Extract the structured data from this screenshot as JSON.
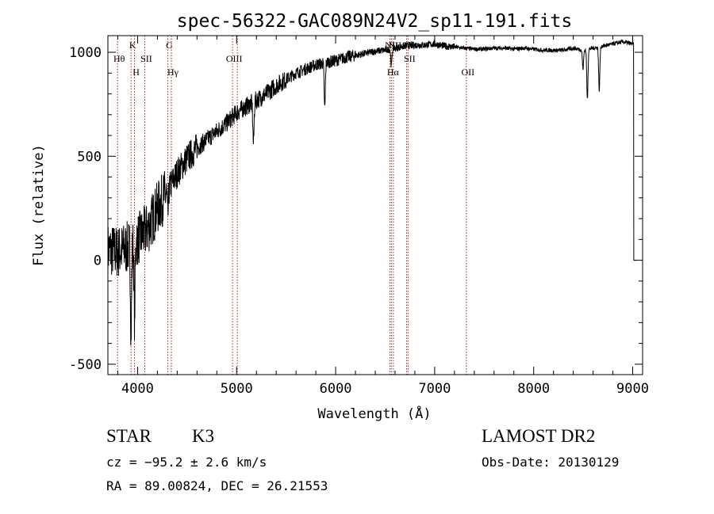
{
  "chart_data": {
    "type": "line",
    "title": "spec-56322-GAC089N24V2_sp11-191.fits",
    "xlabel": "Wavelength (Å)",
    "ylabel": "Flux (relative)",
    "xlim": [
      3700,
      9100
    ],
    "ylim": [
      -550,
      1080
    ],
    "xticks": [
      4000,
      5000,
      6000,
      7000,
      8000,
      9000
    ],
    "yticks": [
      -500,
      0,
      500,
      1000
    ],
    "grid": false,
    "line_color": "#000000",
    "marker_color": "#b22222",
    "spectral_lines": [
      {
        "label": "Hθ",
        "wavelength": 3798,
        "tier": "top"
      },
      {
        "label": "K",
        "wavelength": 3934,
        "tier": "upper"
      },
      {
        "label": "H",
        "wavelength": 3969,
        "tier": "lower"
      },
      {
        "label": "SII",
        "wavelength": 4072,
        "tier": "top"
      },
      {
        "label": "G",
        "wavelength": 4305,
        "tier": "upper"
      },
      {
        "label": "Hγ",
        "wavelength": 4341,
        "tier": "lower"
      },
      {
        "label": "OIII",
        "wavelength": 4959,
        "tier": "top"
      },
      {
        "label": "OIII",
        "wavelength": 5007,
        "tier": "none"
      },
      {
        "label": "NII",
        "wavelength": 6548,
        "tier": "upper"
      },
      {
        "label": "Hα",
        "wavelength": 6563,
        "tier": "lower"
      },
      {
        "label": "NII",
        "wavelength": 6583,
        "tier": "upper"
      },
      {
        "label": "SII",
        "wavelength": 6716,
        "tier": "upper"
      },
      {
        "label": "SII",
        "wavelength": 6731,
        "tier": "top"
      },
      {
        "label": "OII",
        "wavelength": 7320,
        "tier": "lower"
      }
    ],
    "spectrum_anchors": [
      [
        3700,
        50
      ],
      [
        3800,
        40
      ],
      [
        3900,
        60
      ],
      [
        4000,
        100
      ],
      [
        4100,
        150
      ],
      [
        4200,
        250
      ],
      [
        4300,
        330
      ],
      [
        4400,
        420
      ],
      [
        4500,
        490
      ],
      [
        4600,
        540
      ],
      [
        4700,
        580
      ],
      [
        4800,
        620
      ],
      [
        4900,
        660
      ],
      [
        5000,
        710
      ],
      [
        5100,
        740
      ],
      [
        5200,
        770
      ],
      [
        5300,
        800
      ],
      [
        5400,
        840
      ],
      [
        5500,
        870
      ],
      [
        5600,
        900
      ],
      [
        5700,
        920
      ],
      [
        5800,
        940
      ],
      [
        5900,
        950
      ],
      [
        6000,
        960
      ],
      [
        6100,
        975
      ],
      [
        6200,
        985
      ],
      [
        6300,
        995
      ],
      [
        6400,
        1005
      ],
      [
        6500,
        1010
      ],
      [
        6600,
        1020
      ],
      [
        6700,
        1030
      ],
      [
        6800,
        1035
      ],
      [
        6900,
        1035
      ],
      [
        7000,
        1040
      ],
      [
        7100,
        1030
      ],
      [
        7200,
        1025
      ],
      [
        7300,
        1020
      ],
      [
        7400,
        1015
      ],
      [
        7500,
        1015
      ],
      [
        7600,
        1020
      ],
      [
        7700,
        1020
      ],
      [
        7800,
        1015
      ],
      [
        7900,
        1020
      ],
      [
        8000,
        1015
      ],
      [
        8100,
        1010
      ],
      [
        8200,
        1010
      ],
      [
        8300,
        1010
      ],
      [
        8400,
        1020
      ],
      [
        8500,
        1010
      ],
      [
        8600,
        1020
      ],
      [
        8700,
        1030
      ],
      [
        8800,
        1040
      ],
      [
        8900,
        1050
      ],
      [
        9000,
        1040
      ]
    ],
    "absorption_features": [
      {
        "wavelength": 3934,
        "depth": 400
      },
      {
        "wavelength": 3969,
        "depth": 350
      },
      {
        "wavelength": 4305,
        "depth": 120
      },
      {
        "wavelength": 5170,
        "depth": 200
      },
      {
        "wavelength": 5890,
        "depth": 220
      },
      {
        "wavelength": 6563,
        "depth": 80
      },
      {
        "wavelength": 8498,
        "depth": 90
      },
      {
        "wavelength": 8542,
        "depth": 240
      },
      {
        "wavelength": 8662,
        "depth": 210
      },
      {
        "wavelength": 9030,
        "depth": 1040
      }
    ]
  },
  "info": {
    "object_class": "STAR",
    "subclass": "K3",
    "survey": "LAMOST DR2",
    "redshift": "cz = −95.2 ± 2.6 km/s",
    "obs_date": "Obs-Date: 20130129",
    "coords": "RA =  89.00824, DEC =  26.21553"
  }
}
